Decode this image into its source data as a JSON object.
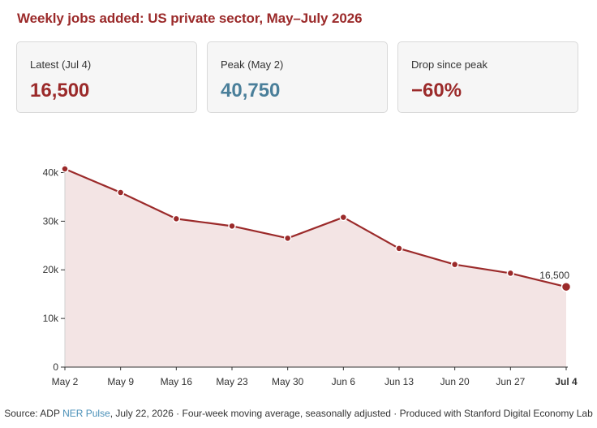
{
  "title": "Weekly jobs added: US private sector, May–July 2026",
  "cards": [
    {
      "label": "Latest (Jul 4)",
      "value": "16,500",
      "color": "#9b2a2a"
    },
    {
      "label": "Peak (May 2)",
      "value": "40,750",
      "color": "#4a7f9a"
    },
    {
      "label": "Drop since peak",
      "value": "−60%",
      "color": "#9b2a2a"
    }
  ],
  "chart_data": {
    "type": "area",
    "title": "Weekly jobs added: US private sector, May–July 2026",
    "xlabel": "",
    "ylabel": "",
    "categories": [
      "May 2",
      "May 9",
      "May 16",
      "May 23",
      "May 30",
      "Jun 6",
      "Jun 13",
      "Jun 20",
      "Jun 27",
      "Jul 4"
    ],
    "series": [
      {
        "values": [
          40750,
          35900,
          30500,
          29000,
          26500,
          30800,
          24400,
          21100,
          19300,
          16500
        ]
      }
    ],
    "yticks": [
      0,
      10000,
      20000,
      30000,
      40000
    ],
    "ytick_labels": [
      "0",
      "10k",
      "20k",
      "30k",
      "40k"
    ],
    "ylim": [
      0,
      40750
    ],
    "end_label": "16,500",
    "grid": false,
    "line_color": "#9b2a2a",
    "fill_color": "#f3e4e4"
  },
  "source": {
    "prefix": "Source: ADP ",
    "link": "NER Pulse",
    "suffix": ", July 22, 2026 · Four-week moving average, seasonally adjusted · Produced with Stanford Digital Economy Lab"
  }
}
